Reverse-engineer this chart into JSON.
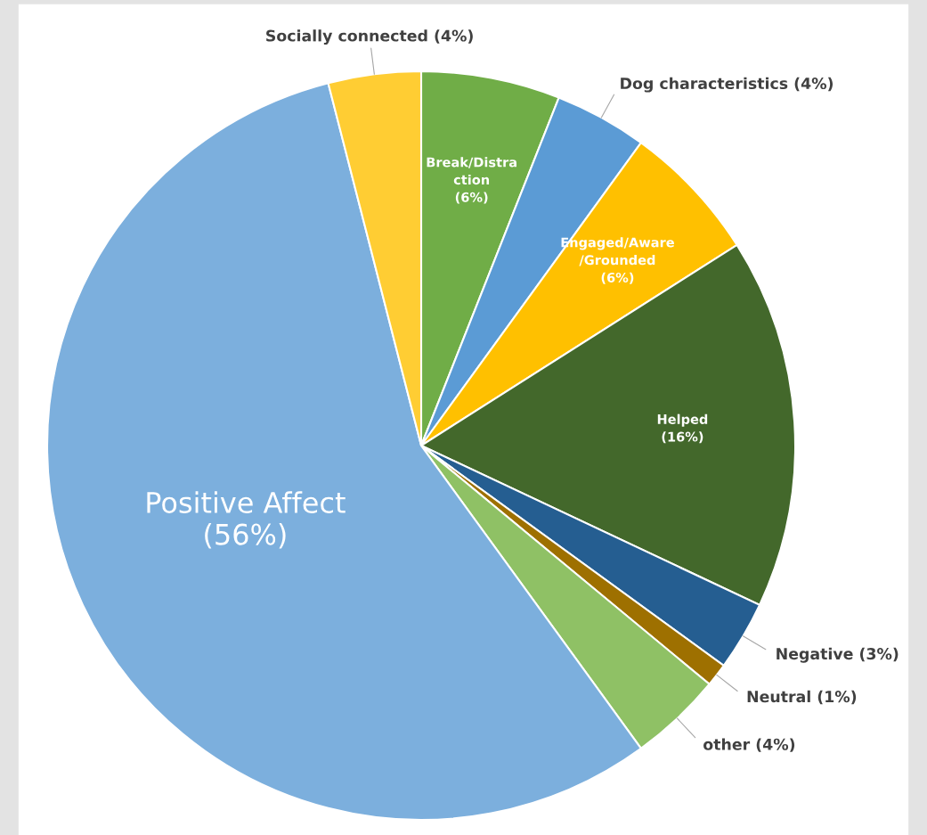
{
  "chart_data": {
    "type": "pie",
    "categories": [
      "Break/Distra\nction\n(6%)",
      "Dog characteristics (4%)",
      "Engaged/Aware\n/Grounded\n(6%)",
      "Helped\n(16%)",
      "Negative (3%)",
      "Neutral (1%)",
      "other (4%)",
      "Positive Affect\n(56%)",
      "Socially connected (4%)"
    ],
    "values": [
      6,
      4,
      6,
      16,
      3,
      1,
      4,
      56,
      4
    ],
    "colors": [
      "#70ad47",
      "#5b9bd5",
      "#ffc000",
      "#43682b",
      "#255e91",
      "#9e7000",
      "#8fc165",
      "#7cafdd",
      "#ffcd33"
    ],
    "legend": false
  }
}
